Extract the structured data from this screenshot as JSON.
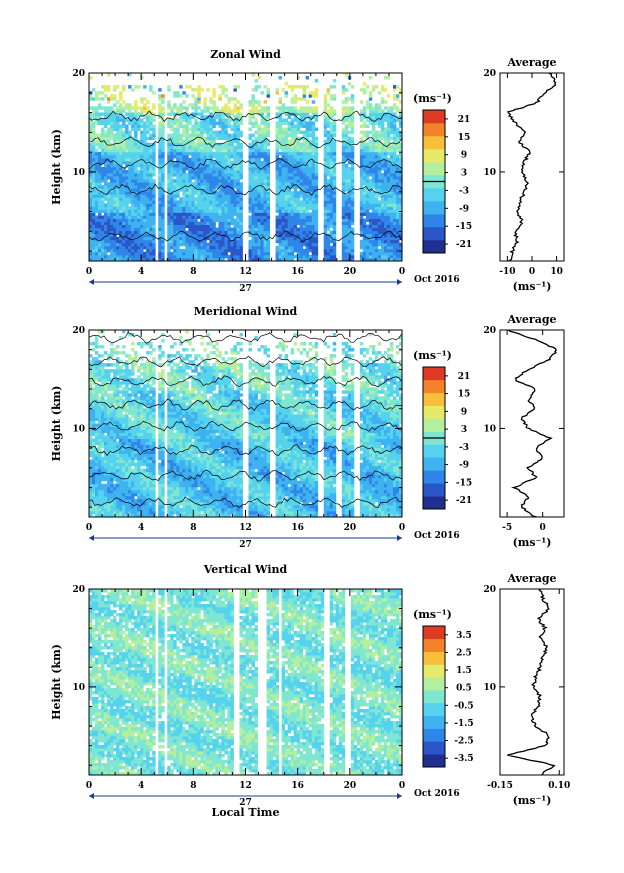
{
  "date_label": "Oct 2016",
  "day_label": "27",
  "xlabel_main": "Local Time",
  "chart_data": [
    {
      "type": "heatmap",
      "title": "Zonal Wind",
      "ylabel": "Height (km)",
      "xlabel": "",
      "x_ticks": [
        "0",
        "4",
        "8",
        "12",
        "16",
        "20",
        "0"
      ],
      "y_ticks": [
        "10",
        "20"
      ],
      "xlim": [
        0,
        24
      ],
      "ylim": [
        1,
        20
      ],
      "colorbar": {
        "unit": "(ms⁻¹)",
        "ticks": [
          "21",
          "15",
          "9",
          "3",
          "-3",
          "-9",
          "-15",
          "-21"
        ],
        "range": [
          -24,
          24
        ],
        "contour_at": 0
      },
      "colors": [
        "#1f2f8f",
        "#2a56c8",
        "#2f86e8",
        "#3fb2f0",
        "#55d2ee",
        "#7fe6d2",
        "#b4ef9e",
        "#e6ea6a",
        "#f8bf3a",
        "#f2832a",
        "#dd3b24"
      ],
      "data_gaps_hours": [
        [
          5.1,
          5.4
        ],
        [
          5.7,
          6.0
        ],
        [
          11.8,
          12.3
        ],
        [
          13.8,
          14.4
        ],
        [
          17.6,
          18.0
        ],
        [
          19.0,
          19.4
        ],
        [
          20.3,
          20.7
        ]
      ],
      "average": {
        "title": "Average",
        "xlabel": "(ms⁻¹)",
        "x_ticks": [
          "-10",
          "0",
          "10"
        ],
        "xlim": [
          -13,
          13
        ],
        "y_ticks": [
          "10",
          "20"
        ],
        "height_km": [
          1,
          2,
          3,
          4,
          5,
          6,
          7,
          8,
          9,
          10,
          11,
          12,
          13,
          14,
          15,
          16,
          17,
          18,
          19,
          20
        ],
        "values": [
          -9,
          -8,
          -6,
          -7,
          -4,
          -6,
          -5,
          -3,
          -2,
          -4,
          -3,
          -1,
          -5,
          -3,
          -7,
          -10,
          2,
          5,
          10,
          7
        ]
      }
    },
    {
      "type": "heatmap",
      "title": "Meridional Wind",
      "ylabel": "Height (km)",
      "xlabel": "",
      "x_ticks": [
        "0",
        "4",
        "8",
        "12",
        "16",
        "20",
        "0"
      ],
      "y_ticks": [
        "10",
        "20"
      ],
      "xlim": [
        0,
        24
      ],
      "ylim": [
        1,
        20
      ],
      "colorbar": {
        "unit": "(ms⁻¹)",
        "ticks": [
          "21",
          "15",
          "9",
          "3",
          "-3",
          "-9",
          "-15",
          "-21"
        ],
        "range": [
          -24,
          24
        ],
        "contour_at": 0
      },
      "colors": [
        "#1f2f8f",
        "#2a56c8",
        "#2f86e8",
        "#3fb2f0",
        "#55d2ee",
        "#7fe6d2",
        "#b4ef9e",
        "#e6ea6a",
        "#f8bf3a",
        "#f2832a",
        "#dd3b24"
      ],
      "data_gaps_hours": [
        [
          5.1,
          5.4
        ],
        [
          5.7,
          6.0
        ],
        [
          11.8,
          12.3
        ],
        [
          13.8,
          14.4
        ],
        [
          17.6,
          18.0
        ],
        [
          19.0,
          19.4
        ],
        [
          20.3,
          20.7
        ]
      ],
      "average": {
        "title": "Average",
        "xlabel": "(ms⁻¹)",
        "x_ticks": [
          "-5",
          "0"
        ],
        "xlim": [
          -6,
          3
        ],
        "y_ticks": [
          "10",
          "20"
        ],
        "height_km": [
          1,
          2,
          3,
          4,
          5,
          6,
          7,
          8,
          9,
          10,
          11,
          12,
          13,
          14,
          15,
          16,
          17,
          18,
          19,
          20
        ],
        "values": [
          -1,
          -3,
          -2,
          -4,
          -1,
          -2,
          0,
          -1,
          1,
          -2,
          -3,
          -1,
          -2,
          -1,
          -4,
          -2,
          1,
          2,
          -1,
          -5
        ]
      }
    },
    {
      "type": "heatmap",
      "title": "Vertical Wind",
      "ylabel": "Height (km)",
      "xlabel": "Local Time",
      "x_ticks": [
        "0",
        "4",
        "8",
        "12",
        "16",
        "20",
        "0"
      ],
      "y_ticks": [
        "10",
        "20"
      ],
      "xlim": [
        0,
        24
      ],
      "ylim": [
        1,
        20
      ],
      "colorbar": {
        "unit": "(ms⁻¹)",
        "ticks": [
          "3.5",
          "2.5",
          "1.5",
          "0.5",
          "-0.5",
          "-1.5",
          "-2.5",
          "-3.5"
        ],
        "range": [
          -4,
          4
        ],
        "contour_at": null
      },
      "colors": [
        "#1f2f8f",
        "#2a56c8",
        "#2f86e8",
        "#3fb2f0",
        "#55d2ee",
        "#7fe6d2",
        "#b4ef9e",
        "#e6ea6a",
        "#f8bf3a",
        "#f2832a",
        "#dd3b24"
      ],
      "data_gaps_hours": [
        [
          5.1,
          5.4
        ],
        [
          5.7,
          6.0
        ],
        [
          11.0,
          11.6
        ],
        [
          13.0,
          13.5
        ],
        [
          14.5,
          14.8
        ],
        [
          18.0,
          18.4
        ],
        [
          19.6,
          20.0
        ]
      ],
      "average": {
        "title": "Average",
        "xlabel": "(ms⁻¹)",
        "x_ticks": [
          "-0.15",
          "0.10"
        ],
        "xlim": [
          -0.15,
          0.12
        ],
        "y_ticks": [
          "10",
          "20"
        ],
        "height_km": [
          1,
          2,
          3,
          4,
          5,
          6,
          7,
          8,
          9,
          10,
          11,
          12,
          13,
          14,
          15,
          16,
          17,
          18,
          19,
          20
        ],
        "values": [
          0.02,
          0.08,
          -0.12,
          0.04,
          0.06,
          0.0,
          -0.02,
          0.01,
          0.02,
          -0.01,
          0.0,
          0.02,
          0.03,
          0.05,
          0.02,
          0.04,
          0.01,
          0.06,
          0.03,
          0.02
        ]
      }
    }
  ]
}
